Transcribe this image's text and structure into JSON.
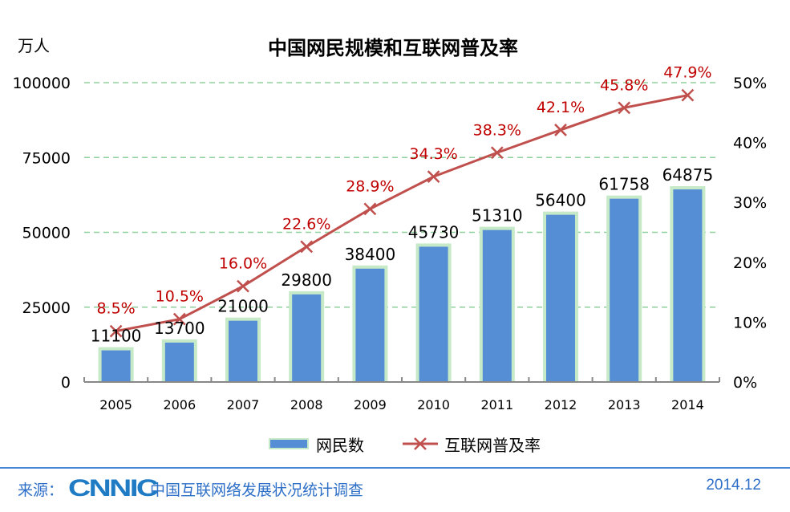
{
  "chart_data": {
    "type": "bar+line",
    "title": "中国网民规模和互联网普及率",
    "ylabel_left": "万人",
    "categories": [
      "2005",
      "2006",
      "2007",
      "2008",
      "2009",
      "2010",
      "2011",
      "2012",
      "2013",
      "2014"
    ],
    "series": [
      {
        "name": "网民数",
        "type": "bar",
        "axis": "left",
        "values": [
          11100,
          13700,
          21000,
          29800,
          38400,
          45730,
          51310,
          56400,
          61758,
          64875
        ],
        "labels": [
          "11100",
          "13700",
          "21000",
          "29800",
          "38400",
          "45730",
          "51310",
          "56400",
          "61758",
          "64875"
        ],
        "color": "#558ed5"
      },
      {
        "name": "互联网普及率",
        "type": "line",
        "axis": "right",
        "values": [
          8.5,
          10.5,
          16.0,
          22.6,
          28.9,
          34.3,
          38.3,
          42.1,
          45.8,
          47.9
        ],
        "labels": [
          "8.5%",
          "10.5%",
          "16.0%",
          "22.6%",
          "28.9%",
          "34.3%",
          "38.3%",
          "42.1%",
          "45.8%",
          "47.9%"
        ],
        "color": "#c0504d"
      }
    ],
    "ylim_left": [
      0,
      100000
    ],
    "yticks_left": [
      "0",
      "25000",
      "50000",
      "75000",
      "100000"
    ],
    "ylim_right": [
      0,
      50
    ],
    "yticks_right": [
      "0%",
      "10%",
      "20%",
      "30%",
      "40%",
      "50%"
    ],
    "grid": "horizontal dashed green",
    "legend": "bottom"
  },
  "footer": {
    "source_label": "来源：",
    "logo": "CNNIC",
    "source": "中国互联网络发展状况统计调查",
    "date": "2014.12"
  }
}
